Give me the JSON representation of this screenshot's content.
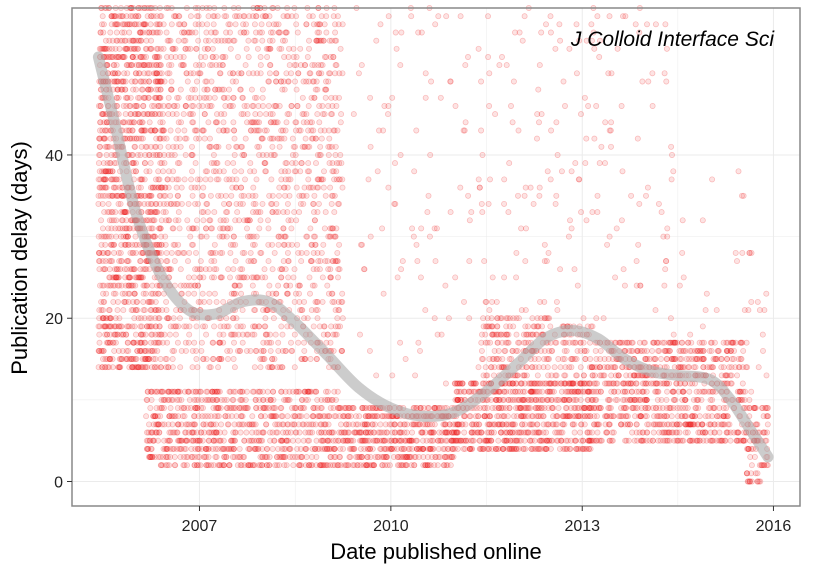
{
  "chart_data": {
    "type": "scatter",
    "title": "J Colloid Interface Sci",
    "xlabel": "Date published online",
    "ylabel": "Publication delay (days)",
    "xlim": [
      "2005-01-01",
      "2016-06-01"
    ],
    "ylim": [
      -3,
      58
    ],
    "x_ticks": [
      {
        "value": "2007-01-01",
        "label": "2007"
      },
      {
        "value": "2010-01-01",
        "label": "2010"
      },
      {
        "value": "2013-01-01",
        "label": "2013"
      },
      {
        "value": "2016-01-01",
        "label": "2016"
      }
    ],
    "y_ticks": [
      0,
      20,
      40
    ],
    "grid": true,
    "colors": {
      "points": "#ee1c1c",
      "smooth": "#aaaaaa",
      "panel_border": "#888888",
      "grid": "#ebebeb"
    },
    "point_clusters": [
      {
        "x_start": "2005-06-01",
        "x_end": "2006-06-01",
        "y_min": 14,
        "y_max": 58,
        "density": 3.2
      },
      {
        "x_start": "2006-06-01",
        "x_end": "2009-04-01",
        "y_min": 14,
        "y_max": 58,
        "density": 1.3
      },
      {
        "x_start": "2006-03-01",
        "x_end": "2009-04-01",
        "y_min": 2,
        "y_max": 11,
        "density": 3.0
      },
      {
        "x_start": "2009-04-01",
        "x_end": "2011-01-01",
        "y_min": 2,
        "y_max": 9,
        "density": 4.0
      },
      {
        "x_start": "2009-06-01",
        "x_end": "2011-06-01",
        "y_min": 9,
        "y_max": 58,
        "density": 0.12
      },
      {
        "x_start": "2011-01-01",
        "x_end": "2013-03-01",
        "y_min": 4,
        "y_max": 12,
        "density": 4.0
      },
      {
        "x_start": "2011-06-01",
        "x_end": "2013-03-01",
        "y_min": 12,
        "y_max": 20,
        "density": 2.0
      },
      {
        "x_start": "2011-06-01",
        "x_end": "2014-06-01",
        "y_min": 20,
        "y_max": 58,
        "density": 0.18
      },
      {
        "x_start": "2013-03-01",
        "x_end": "2015-08-01",
        "y_min": 5,
        "y_max": 17,
        "density": 3.0
      },
      {
        "x_start": "2014-06-01",
        "x_end": "2015-09-01",
        "y_min": 17,
        "y_max": 38,
        "density": 0.1
      },
      {
        "x_start": "2015-08-01",
        "x_end": "2015-12-01",
        "y_min": 0,
        "y_max": 9,
        "density": 3.0
      },
      {
        "x_start": "2015-08-01",
        "x_end": "2015-12-01",
        "y_min": 9,
        "y_max": 28,
        "density": 0.25
      }
    ],
    "smooth_line": [
      {
        "x": "2005-06-01",
        "y": 52
      },
      {
        "x": "2005-09-01",
        "y": 44
      },
      {
        "x": "2006-01-01",
        "y": 33
      },
      {
        "x": "2006-06-01",
        "y": 25
      },
      {
        "x": "2006-11-01",
        "y": 21
      },
      {
        "x": "2007-04-01",
        "y": 20.5
      },
      {
        "x": "2007-09-01",
        "y": 22
      },
      {
        "x": "2008-02-01",
        "y": 22
      },
      {
        "x": "2008-07-01",
        "y": 19.5
      },
      {
        "x": "2009-01-01",
        "y": 15.5
      },
      {
        "x": "2009-07-01",
        "y": 11.5
      },
      {
        "x": "2010-01-01",
        "y": 9
      },
      {
        "x": "2010-07-01",
        "y": 8
      },
      {
        "x": "2011-01-01",
        "y": 8.5
      },
      {
        "x": "2011-07-01",
        "y": 11
      },
      {
        "x": "2012-01-01",
        "y": 14.5
      },
      {
        "x": "2012-06-01",
        "y": 17.5
      },
      {
        "x": "2012-11-01",
        "y": 18.5
      },
      {
        "x": "2013-04-01",
        "y": 17.5
      },
      {
        "x": "2013-09-01",
        "y": 15
      },
      {
        "x": "2014-02-01",
        "y": 13.5
      },
      {
        "x": "2014-07-01",
        "y": 13
      },
      {
        "x": "2015-01-01",
        "y": 12.5
      },
      {
        "x": "2015-05-01",
        "y": 10
      },
      {
        "x": "2015-09-01",
        "y": 6
      },
      {
        "x": "2015-12-01",
        "y": 3
      }
    ]
  }
}
